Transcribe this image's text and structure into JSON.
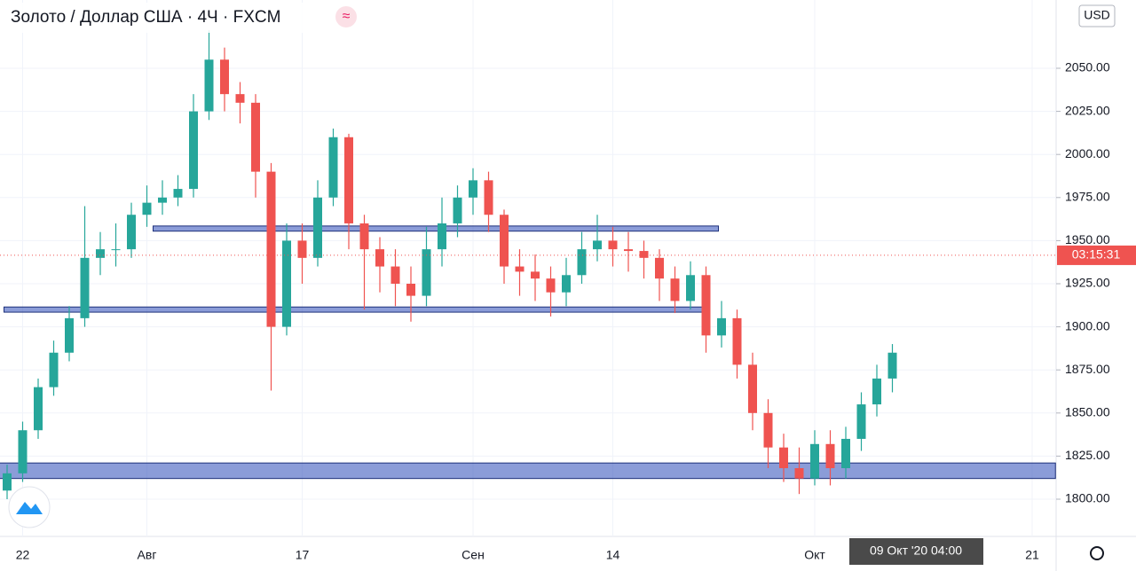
{
  "header": {
    "title": "Золото / Доллар США · 4Ч · FXCM",
    "currency": "USD"
  },
  "chart_data": {
    "type": "candlestick",
    "categories": [
      null,
      "22",
      null,
      null,
      null,
      null,
      null,
      null,
      null,
      "Авг",
      null,
      null,
      null,
      null,
      null,
      null,
      null,
      null,
      null,
      "17",
      null,
      null,
      null,
      null,
      null,
      null,
      null,
      null,
      null,
      null,
      "Сен",
      null,
      null,
      null,
      null,
      null,
      null,
      null,
      null,
      "14",
      null,
      null,
      null,
      null,
      null,
      null,
      null,
      null,
      null,
      null,
      null,
      null,
      "Окт",
      null,
      null,
      null,
      null,
      null,
      null,
      null,
      null,
      null,
      null,
      null,
      null,
      null,
      "21"
    ],
    "open": [
      1805,
      1815,
      1840,
      1865,
      1885,
      1905,
      1940,
      1945,
      1945,
      1965,
      1972,
      1975,
      1980,
      2025,
      2055,
      2035,
      2030,
      1990,
      1900,
      1950,
      1940,
      1975,
      2010,
      1960,
      1945,
      1935,
      1925,
      1918,
      1945,
      1960,
      1975,
      1985,
      1965,
      1935,
      1932,
      1928,
      1920,
      1930,
      1945,
      1950,
      1945,
      1944,
      1940,
      1928,
      1915,
      1930,
      1895,
      1905,
      1878,
      1850,
      1830,
      1818,
      1812,
      1832,
      1818,
      1835,
      1855,
      1870,
      null,
      null,
      null,
      null,
      null,
      null,
      null,
      null,
      null
    ],
    "close": [
      1815,
      1840,
      1865,
      1885,
      1905,
      1940,
      1945,
      1945,
      1965,
      1972,
      1975,
      1980,
      2025,
      2055,
      2035,
      2030,
      1990,
      1900,
      1950,
      1940,
      1975,
      2010,
      1960,
      1945,
      1935,
      1925,
      1918,
      1945,
      1960,
      1975,
      1985,
      1965,
      1935,
      1932,
      1928,
      1920,
      1930,
      1945,
      1950,
      1945,
      1944,
      1940,
      1928,
      1915,
      1930,
      1895,
      1905,
      1878,
      1850,
      1830,
      1818,
      1812,
      1832,
      1818,
      1835,
      1855,
      1870,
      1885,
      null,
      null,
      null,
      null,
      null,
      null,
      null,
      null,
      null
    ],
    "high": [
      1820,
      1845,
      1870,
      1892,
      1912,
      1970,
      1955,
      1960,
      1972,
      1982,
      1985,
      1988,
      2035,
      2072,
      2062,
      2042,
      2035,
      1995,
      1960,
      1960,
      1985,
      2015,
      2012,
      1965,
      1952,
      1945,
      1935,
      1958,
      1975,
      1982,
      1992,
      1990,
      1968,
      1945,
      1942,
      1935,
      1940,
      1955,
      1965,
      1958,
      1955,
      1950,
      1945,
      1935,
      1938,
      1935,
      1915,
      1910,
      1885,
      1858,
      1838,
      1830,
      1840,
      1840,
      1842,
      1862,
      1878,
      1890,
      null,
      null,
      null,
      null,
      null,
      null,
      null,
      null,
      null
    ],
    "low": [
      1800,
      1810,
      1835,
      1860,
      1880,
      1900,
      1930,
      1935,
      1940,
      1958,
      1965,
      1970,
      1975,
      2020,
      2025,
      2018,
      1975,
      1863,
      1895,
      1925,
      1935,
      1970,
      1945,
      1910,
      1920,
      1912,
      1903,
      1912,
      1935,
      1952,
      1965,
      1955,
      1925,
      1918,
      1915,
      1906,
      1912,
      1925,
      1938,
      1935,
      1932,
      1928,
      1915,
      1908,
      1910,
      1885,
      1888,
      1870,
      1840,
      1818,
      1810,
      1803,
      1808,
      1808,
      1812,
      1828,
      1848,
      1862,
      null,
      null,
      null,
      null,
      null,
      null,
      null,
      null,
      null
    ],
    "up_color": "#26a69a",
    "down_color": "#ef5350",
    "ylim": [
      1778.4,
      2089.6
    ],
    "yticks": [
      {
        "value": 1800,
        "label": "1800.00"
      },
      {
        "value": 1825,
        "label": "1825.00"
      },
      {
        "value": 1850,
        "label": "1850.00"
      },
      {
        "value": 1875,
        "label": "1875.00"
      },
      {
        "value": 1900,
        "label": "1900.00"
      },
      {
        "value": 1925,
        "label": "1925.00"
      },
      {
        "value": 1950,
        "label": "1950.00"
      },
      {
        "value": 1975,
        "label": "1975.00"
      },
      {
        "value": 2000,
        "label": "2000.00"
      },
      {
        "value": 2025,
        "label": "2025.00"
      },
      {
        "value": 2050,
        "label": "2050.00"
      }
    ],
    "grid": true,
    "zones": [
      {
        "top": 1958.5,
        "bottom": 1955.5,
        "from": 9.4,
        "to": 45.8
      },
      {
        "top": 1911.5,
        "bottom": 1908.5,
        "from": -0.2,
        "to": 44.9
      },
      {
        "top": 1821,
        "bottom": 1812,
        "from": -0.5,
        "to": 67.5
      }
    ],
    "current_price": {
      "value": 1941.5,
      "countdown": "03:15:31",
      "color": "#ef5350"
    },
    "crosshair_label": "09 Окт '20   04:00"
  }
}
